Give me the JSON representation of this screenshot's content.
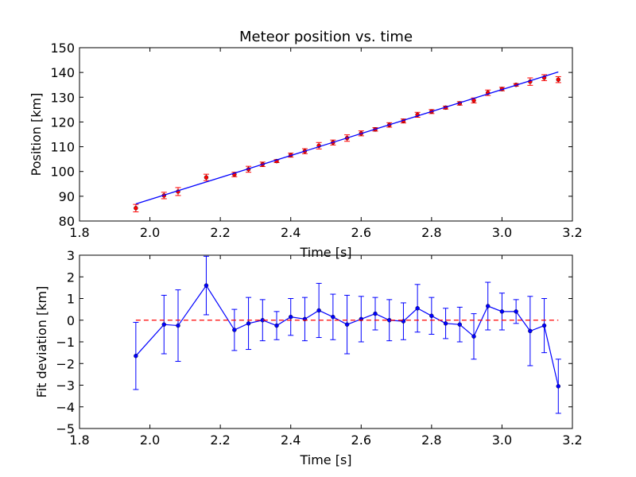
{
  "chart_data": [
    {
      "type": "scatter",
      "title": "Meteor position vs. time",
      "xlabel": "Time [s]",
      "ylabel": "Position [km]",
      "xlim": [
        1.8,
        3.2
      ],
      "ylim": [
        80,
        150
      ],
      "xticks": [
        "1.8",
        "2.0",
        "2.2",
        "2.4",
        "2.6",
        "2.8",
        "3.0",
        "3.2"
      ],
      "yticks": [
        "80",
        "90",
        "100",
        "110",
        "120",
        "130",
        "140",
        "150"
      ],
      "grid": false,
      "series": [
        {
          "kind": "errorbar-points",
          "color": "#ff0000",
          "x": [
            1.96,
            2.04,
            2.08,
            2.16,
            2.24,
            2.28,
            2.32,
            2.36,
            2.4,
            2.44,
            2.48,
            2.52,
            2.56,
            2.6,
            2.64,
            2.68,
            2.72,
            2.76,
            2.8,
            2.84,
            2.88,
            2.92,
            2.96,
            3.0,
            3.04,
            3.08,
            3.12,
            3.16
          ],
          "y": [
            85.2,
            90.3,
            91.9,
            97.6,
            98.8,
            100.9,
            102.9,
            104.2,
            106.6,
            108.2,
            110.4,
            111.7,
            113.5,
            115.4,
            117.0,
            118.8,
            120.4,
            122.9,
            124.2,
            125.8,
            127.5,
            128.7,
            131.8,
            133.3,
            135.0,
            136.3,
            137.9,
            137.1
          ],
          "yerr": [
            1.5,
            1.3,
            1.6,
            1.3,
            0.9,
            1.2,
            0.9,
            0.6,
            0.8,
            1.0,
            1.3,
            1.0,
            1.3,
            1.0,
            0.7,
            0.9,
            0.8,
            1.0,
            0.8,
            0.6,
            0.7,
            1.0,
            1.1,
            0.7,
            0.5,
            1.5,
            1.2,
            1.2
          ]
        },
        {
          "kind": "fit-line",
          "color": "#0000ff",
          "x": [
            1.96,
            3.16
          ],
          "y": [
            86.9,
            140.2
          ]
        }
      ]
    },
    {
      "type": "line",
      "title": "",
      "xlabel": "Time [s]",
      "ylabel": "Fit deviation [km]",
      "xlim": [
        1.8,
        3.2
      ],
      "ylim": [
        -5,
        3
      ],
      "xticks": [
        "1.8",
        "2.0",
        "2.2",
        "2.4",
        "2.6",
        "2.8",
        "3.0",
        "3.2"
      ],
      "yticks": [
        "−5",
        "−4",
        "−3",
        "−2",
        "−1",
        "0",
        "1",
        "2",
        "3"
      ],
      "grid": false,
      "series": [
        {
          "kind": "errorbar-line",
          "color": "#0000ff",
          "x": [
            1.96,
            2.04,
            2.08,
            2.16,
            2.24,
            2.28,
            2.32,
            2.36,
            2.4,
            2.44,
            2.48,
            2.52,
            2.56,
            2.6,
            2.64,
            2.68,
            2.72,
            2.76,
            2.8,
            2.84,
            2.88,
            2.92,
            2.96,
            3.0,
            3.04,
            3.08,
            3.12,
            3.16
          ],
          "y": [
            -1.65,
            -0.2,
            -0.25,
            1.6,
            -0.45,
            -0.15,
            0.0,
            -0.25,
            0.15,
            0.05,
            0.45,
            0.15,
            -0.2,
            0.05,
            0.3,
            0.0,
            -0.05,
            0.55,
            0.2,
            -0.15,
            -0.2,
            -0.75,
            0.65,
            0.4,
            0.4,
            -0.5,
            -0.25,
            -3.05
          ],
          "yerr": [
            1.55,
            1.35,
            1.65,
            1.35,
            0.95,
            1.2,
            0.95,
            0.65,
            0.85,
            1.0,
            1.25,
            1.05,
            1.35,
            1.05,
            0.75,
            0.95,
            0.85,
            1.1,
            0.85,
            0.7,
            0.8,
            1.05,
            1.1,
            0.85,
            0.55,
            1.6,
            1.25,
            1.25
          ]
        },
        {
          "kind": "reference-line",
          "color": "#ff0000",
          "dashed": true,
          "x": [
            1.96,
            3.16
          ],
          "y": [
            0,
            0
          ]
        }
      ]
    }
  ]
}
